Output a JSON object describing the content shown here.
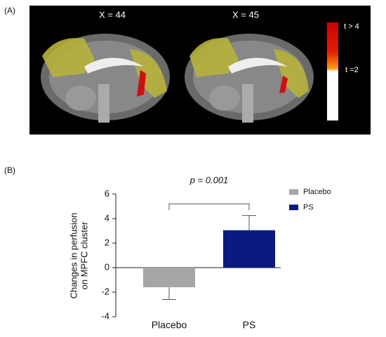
{
  "panel_a": {
    "label": "(A)",
    "slices": [
      "X = 44",
      "X = 45"
    ],
    "colorbar_labels": [
      "t > 4",
      "t =2"
    ]
  },
  "chart_data": {
    "type": "bar",
    "label": "(B)",
    "y_label": [
      "Changes in perfusion",
      "on MPFC cluster"
    ],
    "categories": [
      "Placebo",
      "PS"
    ],
    "values": [
      -1.6,
      3.05
    ],
    "errors": [
      1.0,
      1.2
    ],
    "colors": [
      "#a6a6a8",
      "#0a1a80"
    ],
    "annotation": "p = 0.001",
    "ylim": [
      -4,
      6
    ],
    "yticks": [
      -4,
      -2,
      0,
      2,
      4,
      6
    ],
    "legend": "upper right"
  }
}
